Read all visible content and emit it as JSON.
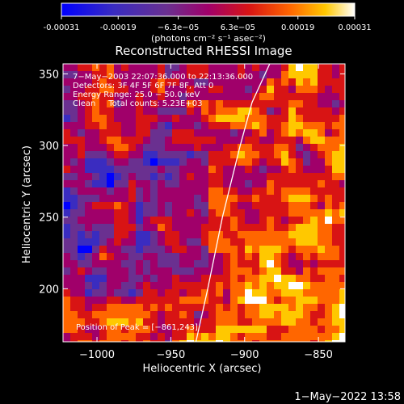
{
  "chart_data": {
    "type": "heatmap",
    "title": "Reconstructed RHESSI Image",
    "xlabel": "Heliocentric X (arcsec)",
    "ylabel": "Heliocentric Y (arcsec)",
    "xlim": [
      -1023,
      -832
    ],
    "ylim": [
      163,
      357
    ],
    "x_ticks": [
      -1000,
      -950,
      -900,
      -850
    ],
    "y_ticks": [
      200,
      250,
      300,
      350
    ],
    "x_tick_labels": [
      "−1000",
      "−950",
      "−900",
      "−850"
    ],
    "y_tick_labels": [
      "200",
      "250",
      "300",
      "350"
    ],
    "colorbar": {
      "min": -0.00031,
      "max": 0.00031,
      "tick_values": [
        -0.00031,
        -0.00019,
        -6.3e-05,
        6.3e-05,
        0.00019,
        0.00031
      ],
      "tick_labels": [
        "-0.00031",
        "-0.00019",
        "−6.3e−05",
        "6.3e−05",
        "0.00019",
        "0.00031"
      ],
      "label": "(photons cm⁻² s⁻¹ asec⁻²)",
      "colors": [
        "#0000ff",
        "#3a2cc0",
        "#6a3090",
        "#a0006a",
        "#d81414",
        "#ff6600",
        "#ffc800",
        "#ffffff"
      ]
    },
    "annotations": [
      "7−May−2003 22:07:36.000 to 22:13:36.000",
      "Detectors: 3F 4F 5F 6F 7F 8F, Att 0",
      "Energy Range: 25.0 − 50.0 keV",
      "Clean     Total counts: 5.23E+03"
    ],
    "peak_label": "Position of Peak = [−861,243]",
    "peak_position": [
      -861,
      243
    ],
    "limb_curve": [
      [
        -933,
        163
      ],
      [
        -925,
        200
      ],
      [
        -915,
        250
      ],
      [
        -903,
        300
      ],
      [
        -895,
        330
      ],
      [
        -883,
        357
      ]
    ]
  },
  "footer": {
    "timestamp": "1−May−2022 13:58"
  }
}
